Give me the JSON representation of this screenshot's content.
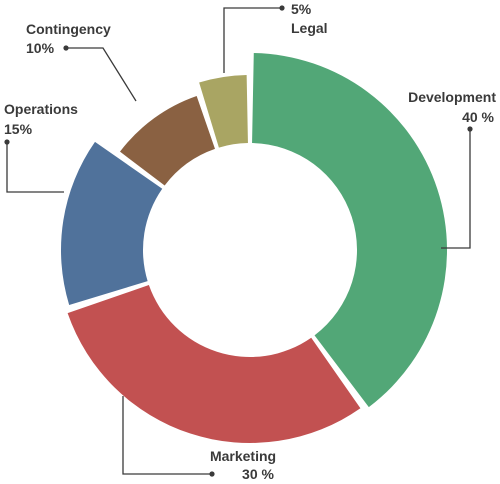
{
  "chart_data": {
    "type": "pie",
    "variant": "donut",
    "title": "",
    "slices": [
      {
        "name": "Development",
        "value": 40,
        "value_label": "40 %",
        "color": "#52a777"
      },
      {
        "name": "Marketing",
        "value": 30,
        "value_label": "30 %",
        "color": "#c25151"
      },
      {
        "name": "Operations",
        "value": 15,
        "value_label": "15%",
        "color": "#50729b"
      },
      {
        "name": "Contingency",
        "value": 10,
        "value_label": "10%",
        "color": "#8a6142"
      },
      {
        "name": "Legal",
        "value": 5,
        "value_label": "5%",
        "color": "#a9a563"
      }
    ],
    "legend": "none",
    "labels": "outside with leader lines"
  }
}
